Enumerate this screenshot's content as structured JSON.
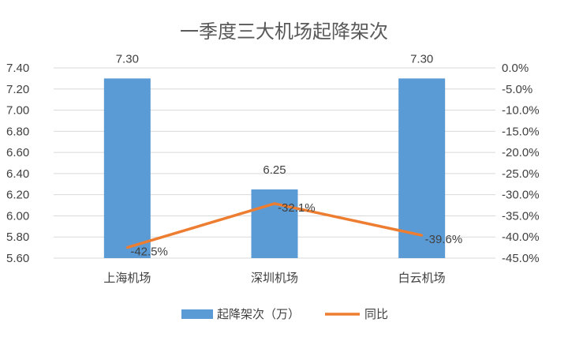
{
  "chart_data": {
    "type": "bar",
    "title": "一季度三大机场起降架次",
    "categories": [
      "上海机场",
      "深圳机场",
      "白云机场"
    ],
    "series": [
      {
        "name": "起降架次（万）",
        "type": "bar",
        "axis": "left",
        "values": [
          7.3,
          6.25,
          7.3
        ],
        "labels": [
          "7.30",
          "6.25",
          "7.30"
        ],
        "color": "#5B9BD5"
      },
      {
        "name": "同比",
        "type": "line",
        "axis": "right",
        "values": [
          -42.5,
          -32.1,
          -39.6
        ],
        "labels": [
          "-42.5%",
          "-32.1%",
          "-39.6%"
        ],
        "color": "#ED7D31"
      }
    ],
    "y_left": {
      "min": 5.6,
      "max": 7.4,
      "step": 0.2,
      "ticks": [
        "5.60",
        "5.80",
        "6.00",
        "6.20",
        "6.40",
        "6.60",
        "6.80",
        "7.00",
        "7.20",
        "7.40"
      ]
    },
    "y_right": {
      "min": -45,
      "max": 0,
      "step": 5,
      "ticks": [
        "-45.0%",
        "-40.0%",
        "-35.0%",
        "-30.0%",
        "-25.0%",
        "-20.0%",
        "-15.0%",
        "-10.0%",
        "-5.0%",
        "0.0%"
      ]
    },
    "grid": true,
    "legend_position": "bottom"
  }
}
